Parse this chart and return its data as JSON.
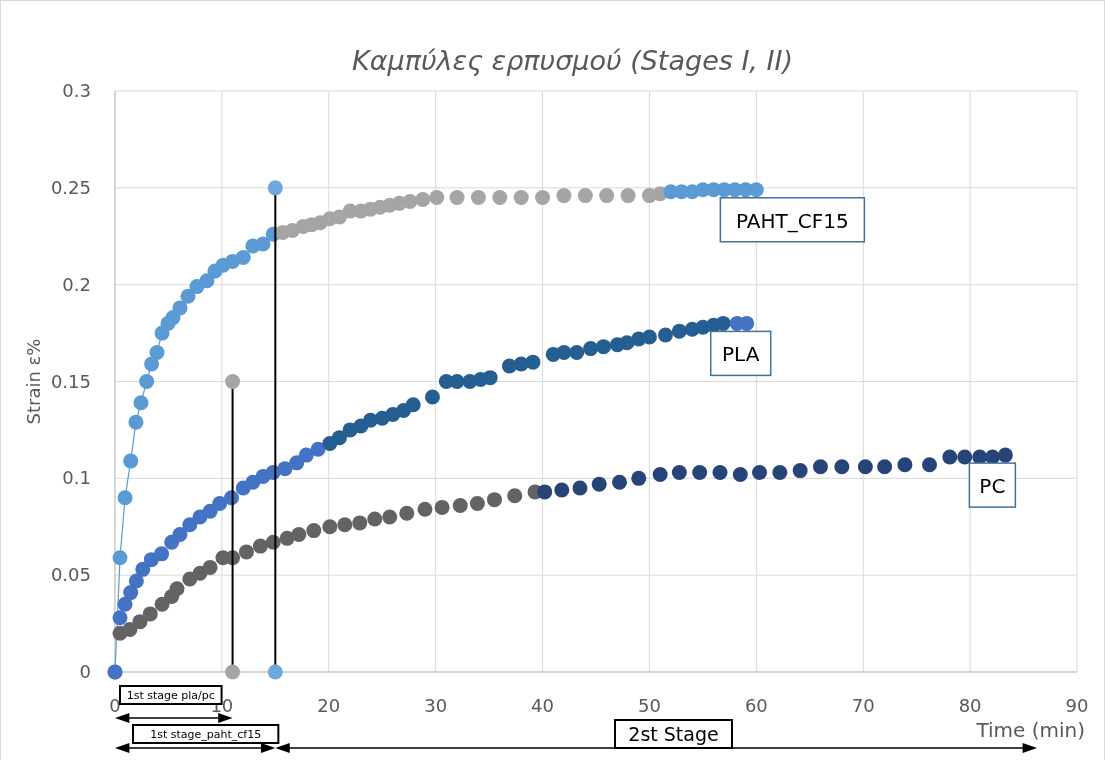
{
  "chart_data": {
    "type": "scatter",
    "title": "Καμπύλες ερπυσμού (Stages I, II)",
    "xlabel": "Time (min)",
    "ylabel": "Strain ε%",
    "xlim": [
      0,
      90
    ],
    "xticks": [
      0,
      10,
      20,
      30,
      40,
      50,
      60,
      70,
      80,
      90
    ],
    "ylim": [
      0,
      0.3
    ],
    "yticks": [
      0,
      0.05,
      0.1,
      0.15,
      0.2,
      0.25,
      0.3
    ],
    "grid": true,
    "annotations": [
      "1st stage pla/pc",
      "1st stage_paht_cf15",
      "2st Stage"
    ],
    "series": [
      {
        "type": "line",
        "marker": "circle",
        "color": "#5b9bd5",
        "x": [
          0,
          0.47,
          0.94,
          1.47,
          1.96,
          2.43,
          2.96,
          3.42,
          3.93,
          4.4,
          4.96,
          5.43,
          6.08,
          6.83,
          7.67,
          8.6,
          9.35,
          10.1,
          11,
          12,
          12.9,
          13.85,
          14.8
        ],
        "values": [
          0,
          0.059,
          0.09,
          0.109,
          0.129,
          0.139,
          0.15,
          0.159,
          0.165,
          0.175,
          0.18,
          0.183,
          0.188,
          0.194,
          0.199,
          0.202,
          0.207,
          0.21,
          0.212,
          0.214,
          0.22,
          0.221,
          0.226
        ]
      },
      {
        "color": "#a5a5a5",
        "x": [
          15.7,
          16.6,
          17.6,
          18.4,
          19.2,
          20.1,
          21,
          22,
          23,
          23.9,
          24.8,
          25.7,
          26.6,
          27.6,
          28.8,
          30.1,
          32,
          34,
          36,
          38,
          40,
          42,
          44,
          46,
          48,
          50,
          51
        ],
        "values": [
          0.227,
          0.228,
          0.23,
          0.231,
          0.232,
          0.234,
          0.235,
          0.238,
          0.238,
          0.239,
          0.24,
          0.241,
          0.242,
          0.243,
          0.244,
          0.245,
          0.245,
          0.245,
          0.245,
          0.245,
          0.245,
          0.246,
          0.246,
          0.246,
          0.246,
          0.246,
          0.247
        ]
      },
      {
        "name": "PAHT_CF15",
        "color": "#5b9bd5",
        "x": [
          52,
          53,
          54,
          55,
          56,
          57,
          58,
          59,
          60
        ],
        "values": [
          0.248,
          0.248,
          0.248,
          0.249,
          0.249,
          0.249,
          0.249,
          0.249,
          0.249
        ]
      },
      {
        "color": "#4472c4",
        "x": [
          0,
          0.47,
          0.94,
          1.47,
          2,
          2.6,
          3.4,
          4.36,
          5.3,
          6.08,
          7,
          7.95,
          8.9,
          9.8,
          10.9,
          12,
          12.9,
          13.85,
          14.8,
          15.9,
          17,
          17.9,
          19
        ],
        "values": [
          0,
          0.028,
          0.035,
          0.041,
          0.047,
          0.053,
          0.058,
          0.061,
          0.067,
          0.071,
          0.076,
          0.08,
          0.083,
          0.087,
          0.09,
          0.095,
          0.098,
          0.101,
          0.103,
          0.105,
          0.108,
          0.112,
          0.115
        ]
      },
      {
        "color": "#255e91",
        "x": [
          20.1,
          21,
          22,
          23,
          23.9,
          25,
          26,
          27,
          27.9,
          29.7,
          31,
          32,
          33.2,
          34.2,
          35.1,
          36.9,
          38,
          39.1,
          41,
          42,
          43.2,
          44.5,
          45.7,
          47,
          47.9,
          49,
          50,
          51.5,
          52.8,
          54,
          55,
          56,
          56.9
        ],
        "values": [
          0.118,
          0.121,
          0.125,
          0.127,
          0.13,
          0.131,
          0.133,
          0.135,
          0.138,
          0.142,
          0.15,
          0.15,
          0.15,
          0.151,
          0.152,
          0.158,
          0.159,
          0.16,
          0.164,
          0.165,
          0.165,
          0.167,
          0.168,
          0.169,
          0.17,
          0.172,
          0.173,
          0.174,
          0.176,
          0.177,
          0.178,
          0.179,
          0.18
        ]
      },
      {
        "name": "PLA",
        "color": "#4472c4",
        "x": [
          58.2,
          59.1
        ],
        "values": [
          0.18,
          0.18
        ]
      },
      {
        "color": "#636363",
        "x": [
          0.47,
          1.4,
          2.34,
          3.3,
          4.4,
          5.3,
          5.8,
          7,
          7.95,
          8.9,
          10.1,
          11,
          12.3,
          13.6,
          14.8,
          16.1,
          17.2,
          18.6,
          20.1,
          21.5,
          22.9,
          24.3,
          25.7,
          27.3,
          29,
          30.6,
          32.3,
          33.9,
          35.5,
          37.4,
          39.3
        ],
        "values": [
          0.02,
          0.022,
          0.026,
          0.03,
          0.035,
          0.039,
          0.043,
          0.048,
          0.051,
          0.054,
          0.059,
          0.059,
          0.062,
          0.065,
          0.067,
          0.069,
          0.071,
          0.073,
          0.075,
          0.076,
          0.077,
          0.079,
          0.08,
          0.082,
          0.084,
          0.085,
          0.086,
          0.087,
          0.089,
          0.091,
          0.093
        ]
      },
      {
        "name": "PC",
        "color": "#264478",
        "x": [
          40.2,
          41.8,
          43.5,
          45.3,
          47.2,
          49,
          51,
          52.8,
          54.7,
          56.6,
          58.5,
          60.3,
          62.2,
          64.1,
          66,
          68,
          70.2,
          72,
          73.9,
          76.2,
          78.1,
          79.5,
          80.9,
          82.1,
          83.3
        ],
        "values": [
          0.093,
          0.094,
          0.095,
          0.097,
          0.098,
          0.1,
          0.102,
          0.103,
          0.103,
          0.103,
          0.102,
          0.103,
          0.103,
          0.104,
          0.106,
          0.106,
          0.106,
          0.106,
          0.107,
          0.107,
          0.111,
          0.111,
          0.111,
          0.111,
          0.112
        ]
      },
      {
        "type": "line",
        "marker": "none",
        "color": "#000000",
        "x": [
          11,
          11
        ],
        "values": [
          0,
          0.15
        ]
      },
      {
        "color": "#a5a5a5",
        "x": [
          11,
          11
        ],
        "values": [
          0,
          0.15
        ]
      },
      {
        "type": "line",
        "marker": "none",
        "color": "#000000",
        "x": [
          15,
          15
        ],
        "values": [
          0,
          0.25
        ]
      },
      {
        "color": "#6fa8dc",
        "x": [
          15,
          15
        ],
        "values": [
          0,
          0.25
        ]
      }
    ]
  }
}
